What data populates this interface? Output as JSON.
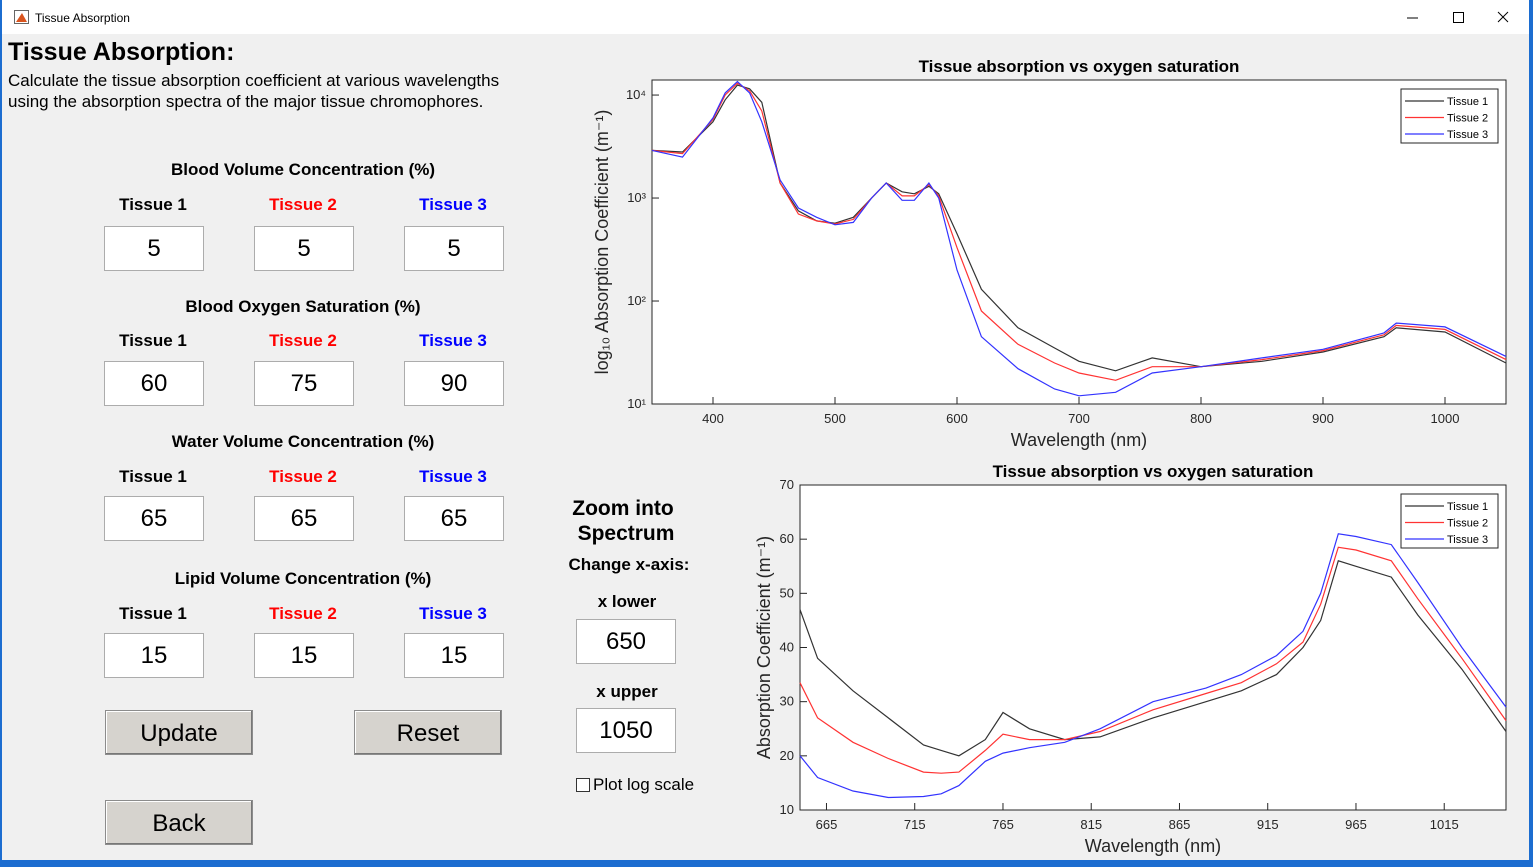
{
  "window": {
    "title": "Tissue Absorption"
  },
  "header": {
    "title": "Tissue Absorption:",
    "description": [
      "Calculate the tissue absorption coefficient at various wavelengths",
      "using the absorption spectra of the major tissue chromophores."
    ]
  },
  "sections": [
    {
      "title": "Blood Volume Concentration (%)",
      "tissues": [
        "Tissue 1",
        "Tissue 2",
        "Tissue 3"
      ],
      "values": [
        "5",
        "5",
        "5"
      ]
    },
    {
      "title": "Blood Oxygen Saturation (%)",
      "tissues": [
        "Tissue 1",
        "Tissue 2",
        "Tissue 3"
      ],
      "values": [
        "60",
        "75",
        "90"
      ]
    },
    {
      "title": "Water Volume Concentration (%)",
      "tissues": [
        "Tissue 1",
        "Tissue 2",
        "Tissue 3"
      ],
      "values": [
        "65",
        "65",
        "65"
      ]
    },
    {
      "title": "Lipid Volume Concentration (%)",
      "tissues": [
        "Tissue 1",
        "Tissue 2",
        "Tissue 3"
      ],
      "values": [
        "15",
        "15",
        "15"
      ]
    }
  ],
  "buttons": [
    "Update",
    "Reset",
    "Back"
  ],
  "zoom": {
    "title": [
      "Zoom   into",
      "Spectrum"
    ],
    "subtitle": "Change x-axis:",
    "lower_label": "x lower",
    "lower_value": "650",
    "upper_label": "x upper",
    "upper_value": "1050",
    "checkbox": "Plot log scale"
  },
  "chart_data": [
    {
      "type": "line",
      "title": "Tissue absorption vs oxygen saturation",
      "x_label": "Wavelength (nm)",
      "y_label": "log₁₀ Absorption Coefficient (m⁻¹)",
      "log_scale": true,
      "legend": "northeast",
      "xlim": [
        350,
        1050
      ],
      "ylim": [
        10,
        14000
      ],
      "xticks": [
        400,
        500,
        600,
        700,
        800,
        900,
        1000
      ],
      "yticks": [
        {
          "value": 10,
          "label": "10¹"
        },
        {
          "value": 100,
          "label": "10²"
        },
        {
          "value": 1000,
          "label": "10³"
        },
        {
          "value": 10000,
          "label": "10⁴"
        }
      ],
      "x": [
        350,
        375,
        400,
        410,
        420,
        430,
        440,
        455,
        470,
        485,
        500,
        515,
        530,
        542,
        555,
        565,
        577,
        585,
        600,
        620,
        650,
        680,
        700,
        730,
        760,
        800,
        850,
        900,
        950,
        960,
        1000,
        1050
      ],
      "series": [
        {
          "name": "Tissue 1",
          "color": "#333333",
          "values": [
            2900,
            2800,
            5500,
            9000,
            12500,
            11500,
            8500,
            1400,
            750,
            600,
            570,
            650,
            1000,
            1400,
            1150,
            1100,
            1300,
            1100,
            450,
            130,
            55,
            35,
            26,
            21,
            28,
            23,
            26,
            32,
            45,
            55,
            50,
            25
          ]
        },
        {
          "name": "Tissue 2",
          "color": "#ff3333",
          "values": [
            2900,
            2700,
            5800,
            10000,
            13000,
            11000,
            7000,
            1400,
            700,
            600,
            560,
            620,
            1000,
            1400,
            1050,
            1050,
            1350,
            1050,
            330,
            80,
            38,
            25,
            20,
            17,
            23,
            23,
            27,
            33,
            47,
            58,
            53,
            27
          ]
        },
        {
          "name": "Tissue 3",
          "color": "#3333ff",
          "values": [
            2900,
            2500,
            6000,
            10500,
            13500,
            10500,
            5500,
            1500,
            800,
            650,
            550,
            580,
            1000,
            1400,
            950,
            950,
            1400,
            1000,
            200,
            45,
            22,
            14,
            12,
            13,
            20,
            23,
            28,
            34,
            49,
            61,
            56,
            29
          ]
        }
      ]
    },
    {
      "type": "line",
      "title": "Tissue absorption vs oxygen saturation",
      "x_label": "Wavelength (nm)",
      "y_label": "Absorption Coefficient (m⁻¹)",
      "log_scale": false,
      "legend": "northeast",
      "xlim": [
        650,
        1050
      ],
      "ylim": [
        10,
        70
      ],
      "xticks": [
        665,
        715,
        765,
        815,
        865,
        915,
        965,
        1015
      ],
      "yticks": [
        10,
        20,
        30,
        40,
        50,
        60,
        70
      ],
      "x": [
        650,
        660,
        680,
        700,
        720,
        730,
        740,
        755,
        765,
        780,
        800,
        820,
        850,
        880,
        900,
        920,
        935,
        945,
        955,
        965,
        985,
        1000,
        1025,
        1050
      ],
      "series": [
        {
          "name": "Tissue 1",
          "color": "#333333",
          "values": [
            47,
            38,
            32,
            27,
            22,
            21,
            20,
            23,
            28,
            25,
            23,
            23.5,
            27,
            30,
            32,
            35,
            40,
            45,
            56,
            55,
            53,
            46,
            36,
            24.5
          ]
        },
        {
          "name": "Tissue 2",
          "color": "#ff3333",
          "values": [
            33.5,
            27,
            22.5,
            19.5,
            17,
            16.8,
            17,
            21,
            24,
            23,
            23,
            24.5,
            28.5,
            31.5,
            33.5,
            37,
            41,
            48,
            58.5,
            58,
            56,
            49,
            38,
            26.5
          ]
        },
        {
          "name": "Tissue 3",
          "color": "#3333ff",
          "values": [
            20,
            16,
            13.5,
            12.3,
            12.5,
            13,
            14.5,
            19,
            20.5,
            21.5,
            22.5,
            25,
            30,
            32.5,
            35,
            38.5,
            43,
            50,
            61,
            60.5,
            59,
            52,
            40,
            29
          ]
        }
      ]
    }
  ]
}
